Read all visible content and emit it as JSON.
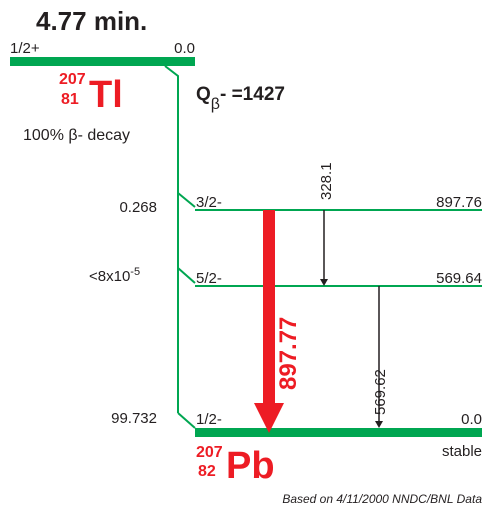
{
  "parent": {
    "half_life": "4.77 min.",
    "spin": "1/2+",
    "energy": "0.0",
    "mass_number": "207",
    "atomic_number": "81",
    "symbol": "Tl",
    "decay_mode_text": "100% β- decay"
  },
  "q_value": {
    "label_main": "Q",
    "label_sub": "β",
    "label_rest": "- =1427"
  },
  "branches": [
    {
      "intensity": "0.268",
      "exponent": ""
    },
    {
      "intensity": "<8x10",
      "exponent": "-5"
    },
    {
      "intensity": "99.732",
      "exponent": ""
    }
  ],
  "levels": [
    {
      "spin": "3/2-",
      "energy": "897.76"
    },
    {
      "spin": "5/2-",
      "energy": "569.64"
    },
    {
      "spin": "1/2-",
      "energy": "0.0",
      "status": "stable"
    }
  ],
  "gammas": [
    {
      "energy": "897.77",
      "intense": true
    },
    {
      "energy": "328.1",
      "intense": false
    },
    {
      "energy": "569.62",
      "intense": false
    }
  ],
  "daughter": {
    "mass_number": "207",
    "atomic_number": "82",
    "symbol": "Pb"
  },
  "footnote": "Based on 4/11/2000 NNDC/BNL Data",
  "colors": {
    "level_green": "#00a651",
    "accent_red": "#ed1c24",
    "text": "#231f20"
  }
}
